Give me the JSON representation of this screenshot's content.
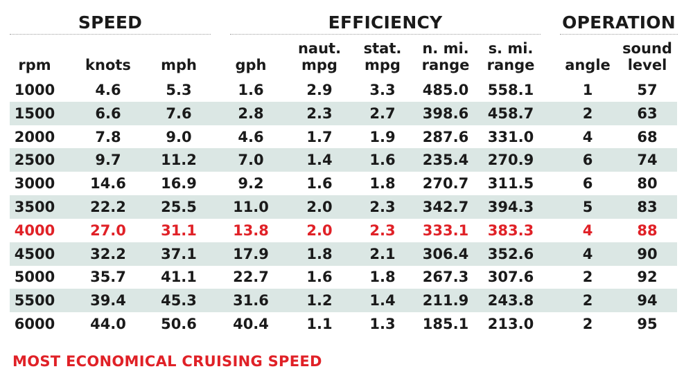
{
  "groups": {
    "speed": "SPEED",
    "efficiency": "EFFICIENCY",
    "operation": "OPERATION"
  },
  "columns": [
    [
      "rpm"
    ],
    [
      "knots"
    ],
    [
      "mph"
    ],
    [
      "gph"
    ],
    [
      "naut.",
      "mpg"
    ],
    [
      "stat.",
      "mpg"
    ],
    [
      "n. mi.",
      "range"
    ],
    [
      "s. mi.",
      "range"
    ],
    [
      "angle"
    ],
    [
      "sound",
      "level"
    ]
  ],
  "rows": [
    [
      "1000",
      "4.6",
      "5.3",
      "1.6",
      "2.9",
      "3.3",
      "485.0",
      "558.1",
      "1",
      "57"
    ],
    [
      "1500",
      "6.6",
      "7.6",
      "2.8",
      "2.3",
      "2.7",
      "398.6",
      "458.7",
      "2",
      "63"
    ],
    [
      "2000",
      "7.8",
      "9.0",
      "4.6",
      "1.7",
      "1.9",
      "287.6",
      "331.0",
      "4",
      "68"
    ],
    [
      "2500",
      "9.7",
      "11.2",
      "7.0",
      "1.4",
      "1.6",
      "235.4",
      "270.9",
      "6",
      "74"
    ],
    [
      "3000",
      "14.6",
      "16.9",
      "9.2",
      "1.6",
      "1.8",
      "270.7",
      "311.5",
      "6",
      "80"
    ],
    [
      "3500",
      "22.2",
      "25.5",
      "11.0",
      "2.0",
      "2.3",
      "342.7",
      "394.3",
      "5",
      "83"
    ],
    [
      "4000",
      "27.0",
      "31.1",
      "13.8",
      "2.0",
      "2.3",
      "333.1",
      "383.3",
      "4",
      "88"
    ],
    [
      "4500",
      "32.2",
      "37.1",
      "17.9",
      "1.8",
      "2.1",
      "306.4",
      "352.6",
      "4",
      "90"
    ],
    [
      "5000",
      "35.7",
      "41.1",
      "22.7",
      "1.6",
      "1.8",
      "267.3",
      "307.6",
      "2",
      "92"
    ],
    [
      "5500",
      "39.4",
      "45.3",
      "31.6",
      "1.2",
      "1.4",
      "211.9",
      "243.8",
      "2",
      "94"
    ],
    [
      "6000",
      "44.0",
      "50.6",
      "40.4",
      "1.1",
      "1.3",
      "185.1",
      "213.0",
      "2",
      "95"
    ]
  ],
  "highlight_row": 6,
  "footnote": "MOST ECONOMICAL CRUISING SPEED",
  "colors": {
    "highlight": "#e02127",
    "stripe": "#dbe7e4",
    "text": "#1a1a1a"
  }
}
